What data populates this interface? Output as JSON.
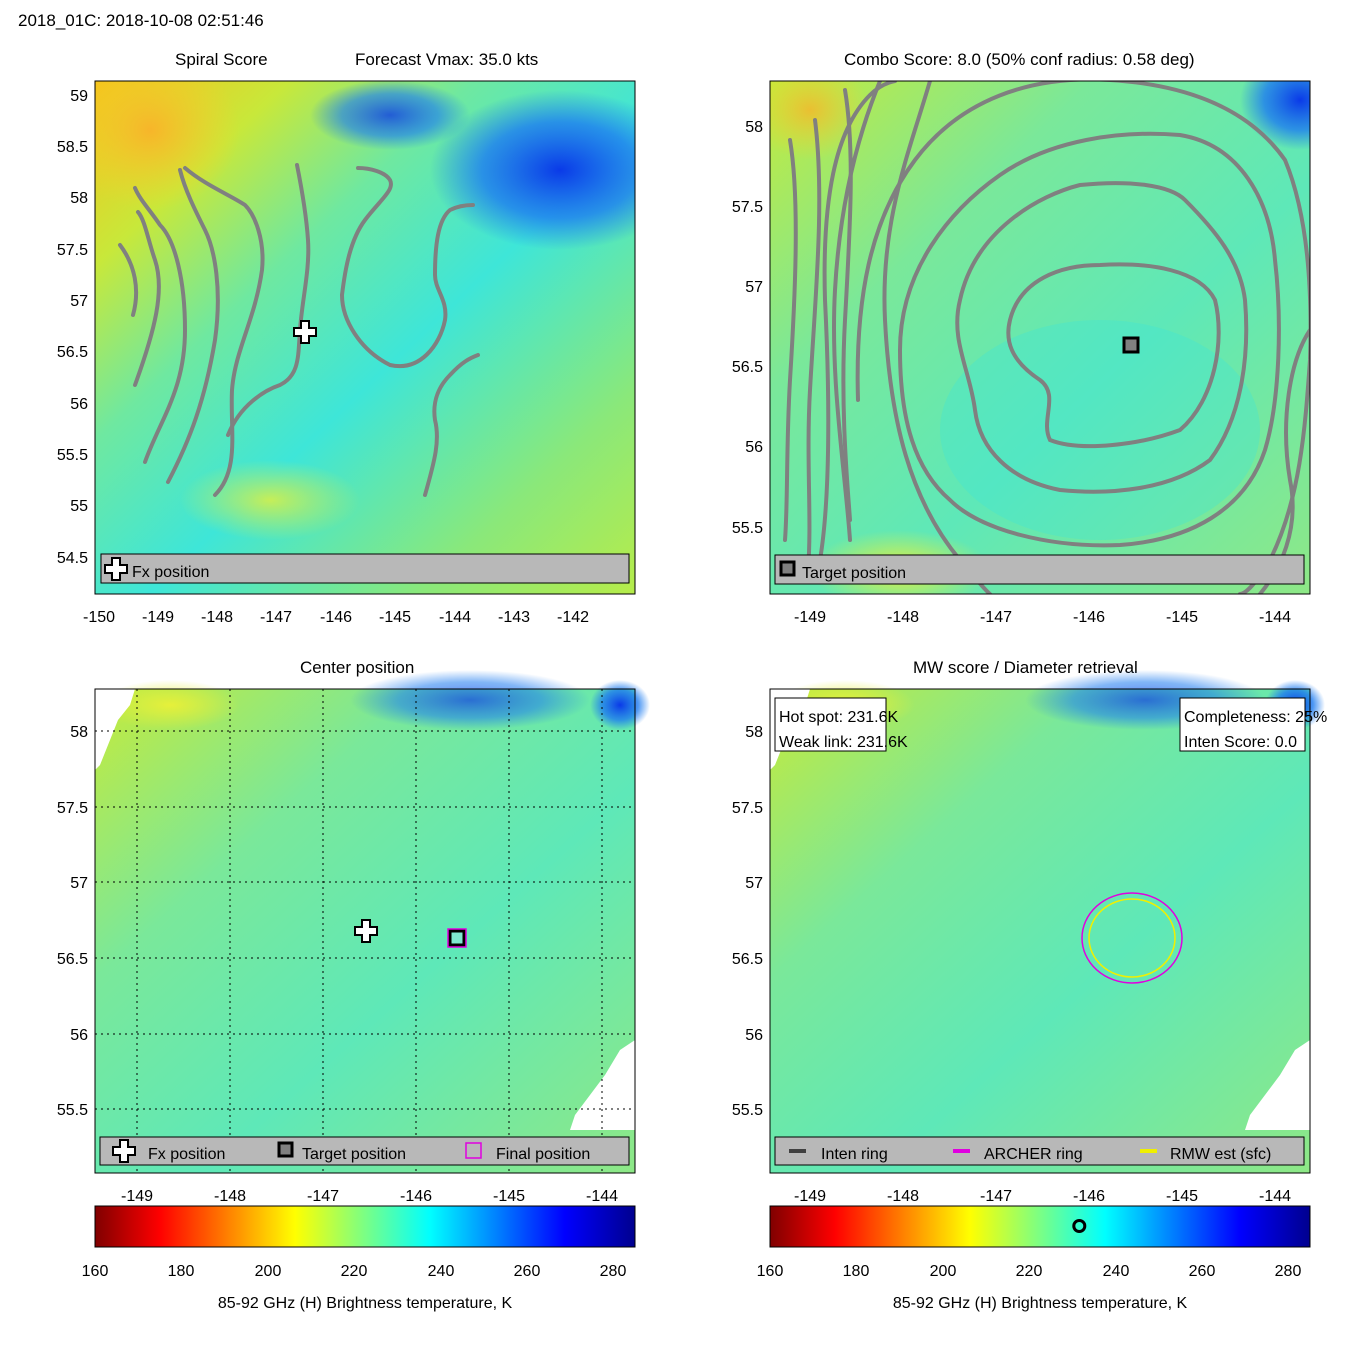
{
  "header": {
    "timestamp": "2018_01C: 2018-10-08 02:51:46"
  },
  "panels": {
    "spiral": {
      "title_left": "Spiral Score",
      "title_right": "Forecast Vmax: 35.0 kts",
      "legend": {
        "fx": "Fx position"
      },
      "x_ticks": [
        "-150",
        "-149",
        "-148",
        "-147",
        "-146",
        "-145",
        "-144",
        "-143",
        "-142"
      ],
      "y_ticks": [
        "59",
        "58.5",
        "58",
        "57.5",
        "57",
        "56.5",
        "56",
        "55.5",
        "55",
        "54.5"
      ]
    },
    "combo": {
      "title": "Combo Score: 8.0  (50% conf radius: 0.58 deg)",
      "legend": {
        "target": "Target position"
      },
      "x_ticks": [
        "-149",
        "-148",
        "-147",
        "-146",
        "-145",
        "-144"
      ],
      "y_ticks": [
        "58",
        "57.5",
        "57",
        "56.5",
        "56",
        "55.5"
      ]
    },
    "center": {
      "title": "Center position",
      "legend": {
        "fx": "Fx position",
        "target": "Target position",
        "final": "Final position"
      },
      "x_ticks": [
        "-149",
        "-148",
        "-147",
        "-146",
        "-145",
        "-144"
      ],
      "y_ticks": [
        "58",
        "57.5",
        "57",
        "56.5",
        "56",
        "55.5"
      ]
    },
    "mw": {
      "title": "MW score / Diameter retrieval",
      "hot_spot": "Hot spot: 231.6K",
      "weak_link": "Weak link: 231.6K",
      "completeness": "Completeness: 25%",
      "inten_score": "Inten Score: 0.0",
      "legend": {
        "inten": "Inten ring",
        "archer": "ARCHER ring",
        "rmw": "RMW est (sfc)"
      },
      "x_ticks": [
        "-149",
        "-148",
        "-147",
        "-146",
        "-145",
        "-144"
      ],
      "y_ticks": [
        "58",
        "57.5",
        "57",
        "56.5",
        "56",
        "55.5"
      ]
    }
  },
  "colorbar": {
    "ticks": [
      "160",
      "180",
      "200",
      "220",
      "240",
      "260",
      "280"
    ],
    "label": "85-92 GHz (H) Brightness temperature, K",
    "min": 160,
    "max": 285,
    "marker_value": 231.6
  },
  "colors": {
    "legend_bg": "#b8b8b8",
    "contour": "#808080",
    "archer": "#e000e0",
    "rmw": "#f0f000"
  },
  "chart_data": [
    {
      "type": "heatmap",
      "title": "Spiral Score",
      "subtitle": "Forecast Vmax: 35.0 kts",
      "xlim": [
        -150,
        -141.2
      ],
      "ylim": [
        54.1,
        59.1
      ],
      "fx_position": [
        -146.5,
        56.67
      ]
    },
    {
      "type": "heatmap",
      "title": "Combo Score: 8.0  (50% conf radius: 0.58 deg)",
      "xlim": [
        -149.4,
        -143.6
      ],
      "ylim": [
        55.1,
        58.3
      ],
      "target_position": [
        -145.55,
        56.63
      ]
    },
    {
      "type": "heatmap",
      "title": "Center position",
      "xlim": [
        -149.4,
        -143.6
      ],
      "ylim": [
        55.1,
        58.3
      ],
      "fx_position": [
        -146.5,
        56.67
      ],
      "target_position": [
        -145.55,
        56.63
      ],
      "final_position": [
        -145.55,
        56.63
      ]
    },
    {
      "type": "heatmap",
      "title": "MW score / Diameter retrieval",
      "xlim": [
        -149.4,
        -143.6
      ],
      "ylim": [
        55.1,
        58.3
      ],
      "archer_ring_center": [
        -145.55,
        56.63
      ],
      "colorbar_label": "85-92 GHz (H) Brightness temperature, K"
    }
  ]
}
